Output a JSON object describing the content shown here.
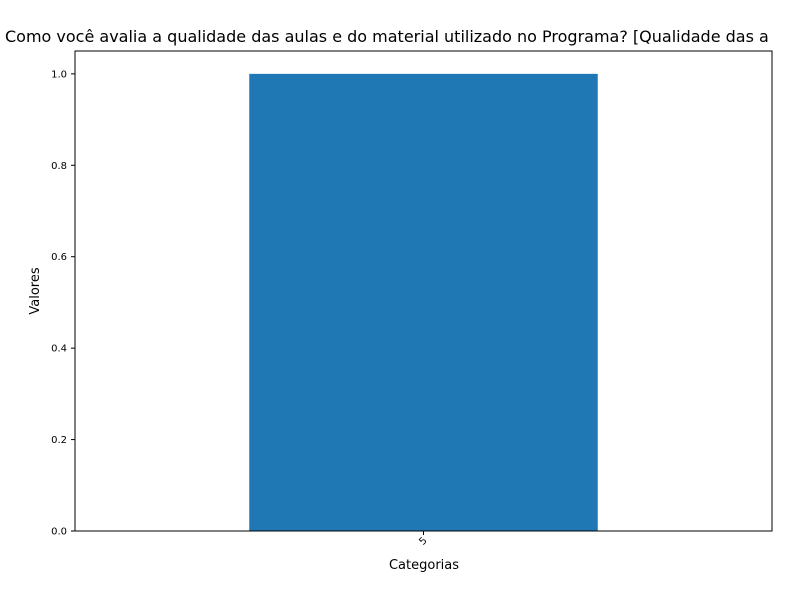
{
  "chart_data": {
    "type": "bar",
    "title": "Como você avalia a qualidade das aulas e do material utilizado no Programa?  [Qualidade das a",
    "xlabel": "Categorias",
    "ylabel": "Valores",
    "categories": [
      "5"
    ],
    "values": [
      1.0
    ],
    "ylim": [
      0,
      1.05
    ],
    "yticks": [
      0.0,
      0.2,
      0.4,
      0.6,
      0.8,
      1.0
    ],
    "ytick_labels": [
      "0.0",
      "0.2",
      "0.4",
      "0.6",
      "0.8",
      "1.0"
    ],
    "xtick_rotation": "45 degrees",
    "grid": false,
    "bar_color": "#1f77b4"
  }
}
